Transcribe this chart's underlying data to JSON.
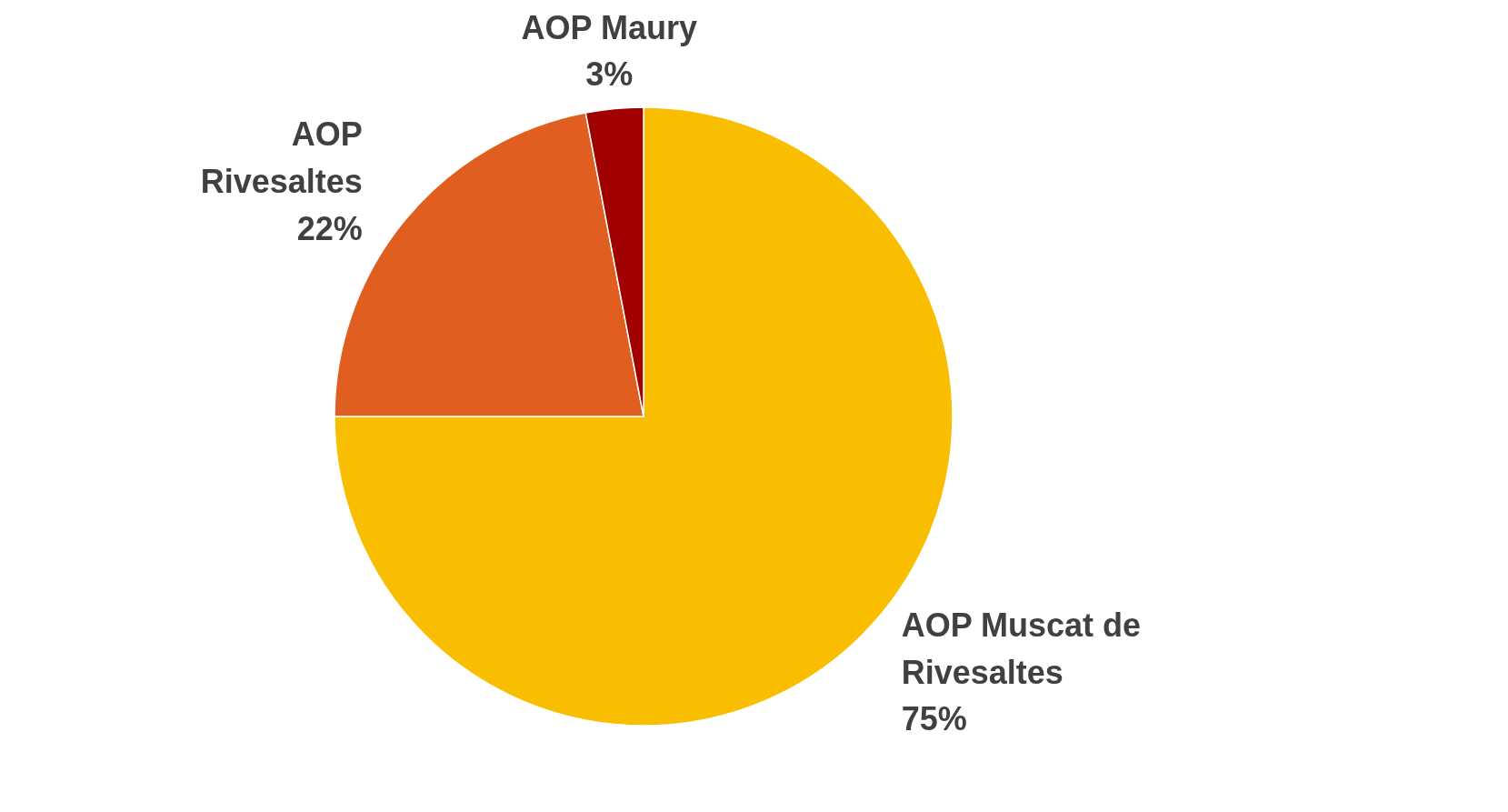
{
  "chart_data": {
    "type": "pie",
    "categories": [
      "AOP Muscat de Rivesaltes",
      "AOP Rivesaltes",
      "AOP Maury"
    ],
    "values": [
      75,
      22,
      3
    ],
    "value_labels": [
      "75%",
      "22%",
      "3%"
    ],
    "colors": [
      "#f9be00",
      "#e05e1f",
      "#a00000"
    ]
  }
}
